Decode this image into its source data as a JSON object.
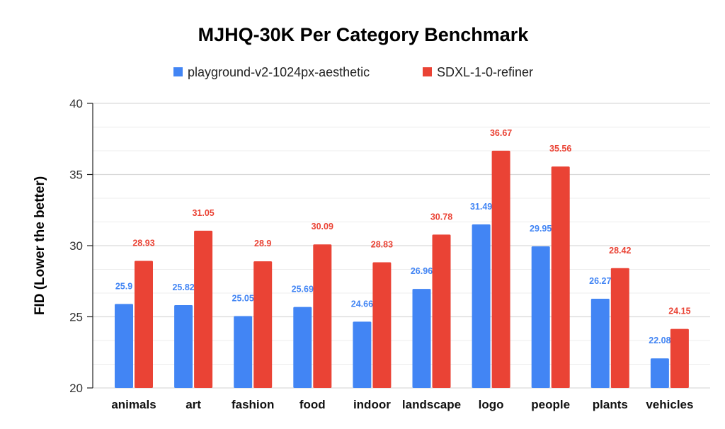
{
  "chart_data": {
    "type": "bar",
    "title": "MJHQ-30K Per Category Benchmark",
    "xlabel": "",
    "ylabel": "FID (Lower the better)",
    "ylim": [
      20,
      40
    ],
    "yticks": [
      "20",
      "25",
      "30",
      "35",
      "40"
    ],
    "grid": true,
    "legend_position": "top",
    "categories": [
      "animals",
      "art",
      "fashion",
      "food",
      "indoor",
      "landscape",
      "logo",
      "people",
      "plants",
      "vehicles"
    ],
    "series": [
      {
        "name": "playground-v2-1024px-aesthetic",
        "color": "#4285f4",
        "values": [
          25.9,
          25.82,
          25.05,
          25.69,
          24.66,
          26.96,
          31.49,
          29.95,
          26.27,
          22.08
        ],
        "labels": [
          "25.9",
          "25.82",
          "25.05",
          "25.69",
          "24.66",
          "26.96",
          "31.49",
          "29.95",
          "26.27",
          "22.08"
        ]
      },
      {
        "name": "SDXL-1-0-refiner",
        "color": "#ea4335",
        "values": [
          28.93,
          31.05,
          28.9,
          30.09,
          28.83,
          30.78,
          36.67,
          35.56,
          28.42,
          24.15
        ],
        "labels": [
          "28.93",
          "31.05",
          "28.9",
          "30.09",
          "28.83",
          "30.78",
          "36.67",
          "35.56",
          "28.42",
          "24.15"
        ]
      }
    ]
  }
}
